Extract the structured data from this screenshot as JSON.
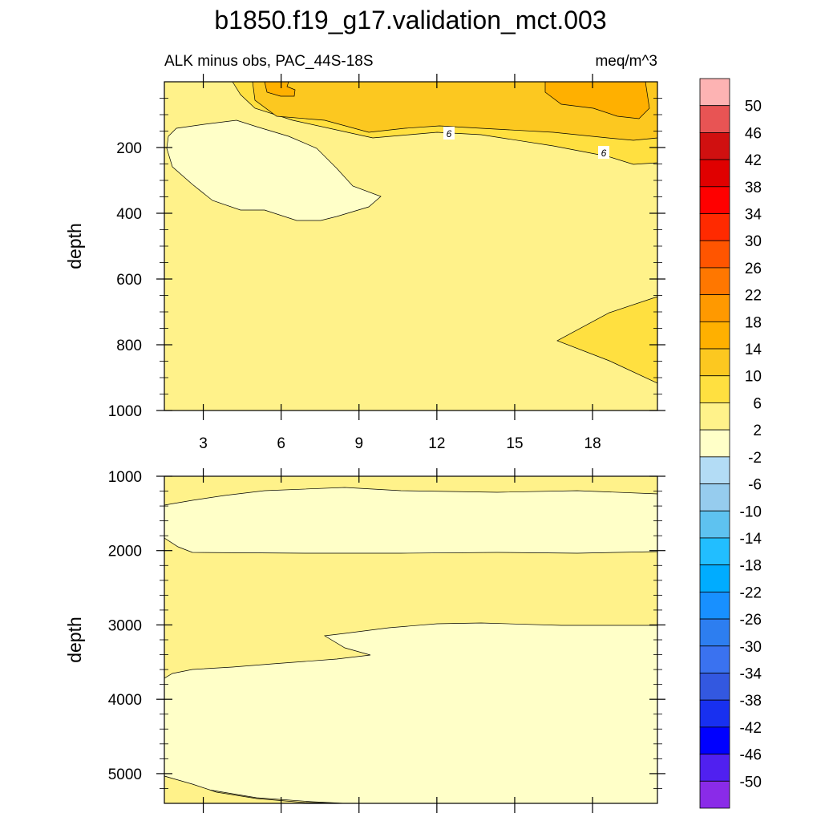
{
  "chart_data": {
    "type": "contour",
    "title": "b1850.f19_g17.validation_mct.003",
    "subtitle_left": "ALK minus obs, PAC_44S-18S",
    "subtitle_right": "meq/m^3",
    "panels": [
      {
        "name": "upper",
        "ylabel": "depth",
        "ylim": [
          1000,
          0
        ],
        "yticks": [
          200,
          400,
          600,
          800,
          1000
        ],
        "xlim": [
          1.5,
          20.5
        ],
        "xticks": [
          3,
          6,
          9,
          12,
          15,
          18
        ],
        "contour_labels": [
          {
            "text": "6",
            "x": 12.5,
            "y": 152
          },
          {
            "text": "6",
            "x": 18.5,
            "y": 215
          }
        ]
      },
      {
        "name": "lower",
        "ylabel": "depth",
        "ylim": [
          5400,
          1000
        ],
        "yticks": [
          1000,
          2000,
          3000,
          4000,
          5000
        ],
        "xlim": [
          1.5,
          20.5
        ],
        "xticks": [
          3,
          6,
          9,
          12,
          15,
          18
        ]
      }
    ],
    "colorbar": {
      "labels": [
        "50",
        "46",
        "42",
        "38",
        "34",
        "30",
        "26",
        "22",
        "18",
        "14",
        "10",
        "6",
        "2",
        "-2",
        "-6",
        "-10",
        "-14",
        "-18",
        "-22",
        "-26",
        "-30",
        "-34",
        "-38",
        "-42",
        "-46",
        "-50"
      ],
      "colors": [
        "#fdb3b3",
        "#e85454",
        "#d01010",
        "#e00000",
        "#ff0000",
        "#ff2a00",
        "#ff5500",
        "#ff7700",
        "#ff9900",
        "#ffb000",
        "#fcc820",
        "#ffe040",
        "#fff28a",
        "#ffffc8",
        "#b3dcf5",
        "#96ccee",
        "#5ec2f0",
        "#22beff",
        "#00acff",
        "#1890ff",
        "#2d7ef0",
        "#3a72f0",
        "#3358e0",
        "#1830f0",
        "#0000ff",
        "#5020f0",
        "#8a2be8"
      ]
    }
  }
}
